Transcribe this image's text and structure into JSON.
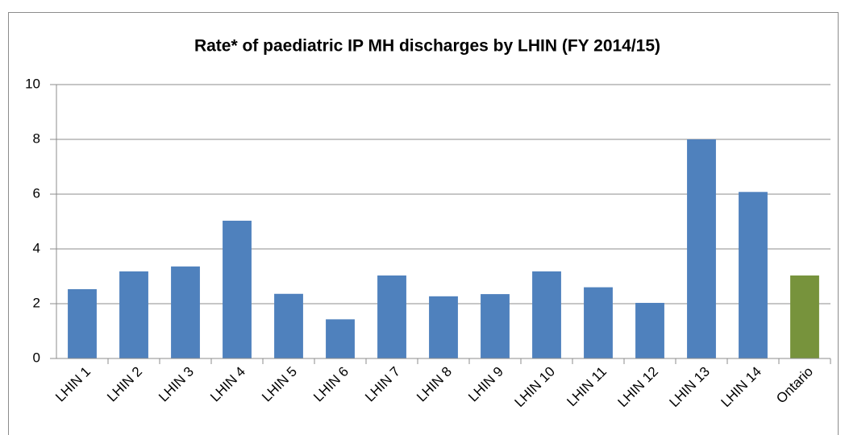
{
  "chart_data": {
    "type": "bar",
    "title": "Rate* of paediatric IP MH discharges by LHIN (FY 2014/15)",
    "categories": [
      "LHIN 1",
      "LHIN 2",
      "LHIN 3",
      "LHIN 4",
      "LHIN 5",
      "LHIN 6",
      "LHIN 7",
      "LHIN 8",
      "LHIN 9",
      "LHIN 10",
      "LHIN 11",
      "LHIN 12",
      "LHIN 13",
      "LHIN 14",
      "Ontario"
    ],
    "values": [
      2.53,
      3.18,
      3.36,
      5.03,
      2.36,
      1.43,
      3.03,
      2.27,
      2.35,
      3.18,
      2.6,
      2.03,
      8.0,
      6.08,
      3.03
    ],
    "colors": [
      "#4f81bd",
      "#4f81bd",
      "#4f81bd",
      "#4f81bd",
      "#4f81bd",
      "#4f81bd",
      "#4f81bd",
      "#4f81bd",
      "#4f81bd",
      "#4f81bd",
      "#4f81bd",
      "#4f81bd",
      "#4f81bd",
      "#4f81bd",
      "#77933c"
    ],
    "ylim": [
      0,
      10
    ],
    "yticks": [
      0,
      2,
      4,
      6,
      8,
      10
    ],
    "grid": true
  }
}
